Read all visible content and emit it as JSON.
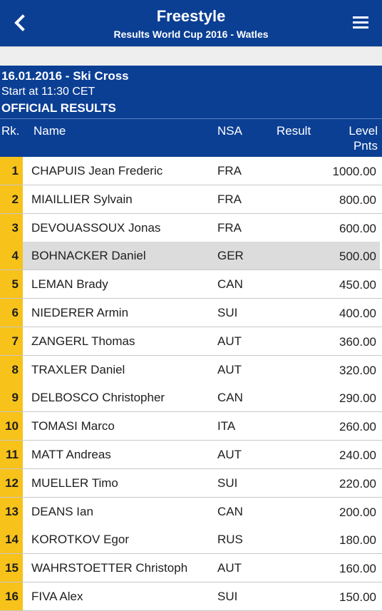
{
  "header": {
    "title": "Freestyle",
    "subtitle": "Results World Cup 2016 - Watles",
    "back_icon": "chevron-left-icon",
    "menu_icon": "hamburger-menu-icon"
  },
  "event": {
    "date_title": "16.01.2016 - Ski Cross",
    "start": "Start at 11:30 CET",
    "status": "OFFICIAL RESULTS"
  },
  "columns": {
    "rank": "Rk.",
    "name": "Name",
    "nsa": "NSA",
    "result": "Result",
    "level": "Level",
    "pnts": "Pnts"
  },
  "highlighted_rank": "4",
  "rows": [
    {
      "rank": "1",
      "name": "CHAPUIS Jean Frederic",
      "nsa": "FRA",
      "result": "",
      "points": "1000.00"
    },
    {
      "rank": "2",
      "name": "MIAILLIER Sylvain",
      "nsa": "FRA",
      "result": "",
      "points": "800.00"
    },
    {
      "rank": "3",
      "name": "DEVOUASSOUX Jonas",
      "nsa": "FRA",
      "result": "",
      "points": "600.00"
    },
    {
      "rank": "4",
      "name": "BOHNACKER Daniel",
      "nsa": "GER",
      "result": "",
      "points": "500.00"
    },
    {
      "rank": "5",
      "name": "LEMAN Brady",
      "nsa": "CAN",
      "result": "",
      "points": "450.00"
    },
    {
      "rank": "6",
      "name": "NIEDERER Armin",
      "nsa": "SUI",
      "result": "",
      "points": "400.00"
    },
    {
      "rank": "7",
      "name": "ZANGERL Thomas",
      "nsa": "AUT",
      "result": "",
      "points": "360.00"
    },
    {
      "rank": "8",
      "name": "TRAXLER Daniel",
      "nsa": "AUT",
      "result": "",
      "points": "320.00"
    },
    {
      "rank": "9",
      "name": "DELBOSCO Christopher",
      "nsa": "CAN",
      "result": "",
      "points": "290.00"
    },
    {
      "rank": "10",
      "name": "TOMASI Marco",
      "nsa": "ITA",
      "result": "",
      "points": "260.00"
    },
    {
      "rank": "11",
      "name": "MATT Andreas",
      "nsa": "AUT",
      "result": "",
      "points": "240.00"
    },
    {
      "rank": "12",
      "name": "MUELLER Timo",
      "nsa": "SUI",
      "result": "",
      "points": "220.00"
    },
    {
      "rank": "13",
      "name": "DEANS Ian",
      "nsa": "CAN",
      "result": "",
      "points": "200.00"
    },
    {
      "rank": "14",
      "name": "KOROTKOV Egor",
      "nsa": "RUS",
      "result": "",
      "points": "180.00"
    },
    {
      "rank": "15",
      "name": "WAHRSTOETTER Christoph",
      "nsa": "AUT",
      "result": "",
      "points": "160.00"
    },
    {
      "rank": "16",
      "name": "FIVA Alex",
      "nsa": "SUI",
      "result": "",
      "points": "150.00"
    }
  ],
  "colors": {
    "header_bg": "#0b3f94",
    "rank_bg": "#f7c21a",
    "highlight_bg": "#dcdcdc",
    "separator_bg": "#eeeeee"
  }
}
